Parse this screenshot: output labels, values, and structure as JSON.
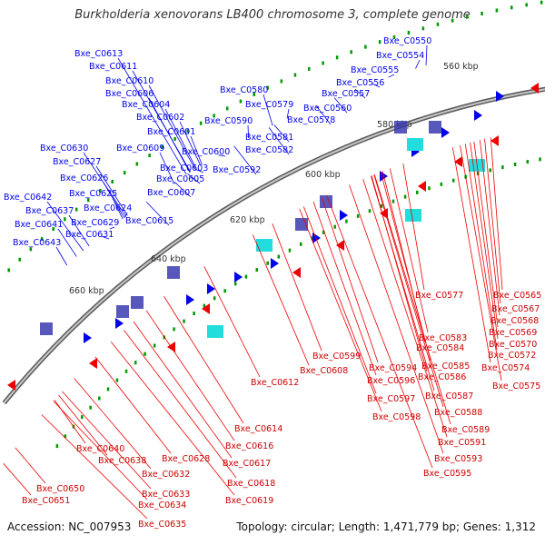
{
  "title": "Burkholderia xenovorans LB400 chromosome 3, complete genome",
  "footer": {
    "accession_label": "Accession: NC_007953",
    "stats_label": "Topology: circular; Length: 1,471,779 bp; Genes: 1,312"
  },
  "colors": {
    "forward_strand": "#0000ee",
    "reverse_strand": "#ee0000",
    "backbone": "#888888",
    "kbp_tick": "#009900"
  },
  "position_labels": [
    "560 kbp",
    "580 kbp",
    "600 kbp",
    "620 kbp",
    "640 kbp",
    "660 kbp"
  ],
  "forward_genes": [
    "Bxe_C0550",
    "Bxe_C0554",
    "Bxe_C0555",
    "Bxe_C0556",
    "Bxe_C0557",
    "Bxe_C0560",
    "Bxe_C0613",
    "Bxe_C0611",
    "Bxe_C0610",
    "Bxe_C0606",
    "Bxe_C0604",
    "Bxe_C0602",
    "Bxe_C0601",
    "Bxe_C0600",
    "Bxe_C0609",
    "Bxe_C0603",
    "Bxe_C0605",
    "Bxe_C0607",
    "Bxe_C0615",
    "Bxe_C0580",
    "Bxe_C0579",
    "Bxe_C0578",
    "Bxe_C0590",
    "Bxe_C0581",
    "Bxe_C0582",
    "Bxe_C0592",
    "Bxe_C0630",
    "Bxe_C0627",
    "Bxe_C0626",
    "Bxe_C0625",
    "Bxe_C0624",
    "Bxe_C0629",
    "Bxe_C0631",
    "Bxe_C0642",
    "Bxe_C0637",
    "Bxe_C0641",
    "Bxe_C0643"
  ],
  "reverse_genes": [
    "Bxe_C0577",
    "Bxe_C0565",
    "Bxe_C0567",
    "Bxe_C0568",
    "Bxe_C0569",
    "Bxe_C0570",
    "Bxe_C0572",
    "Bxe_C0574",
    "Bxe_C0575",
    "Bxe_C0583",
    "Bxe_C0584",
    "Bxe_C0585",
    "Bxe_C0586",
    "Bxe_C0587",
    "Bxe_C0588",
    "Bxe_C0589",
    "Bxe_C0591",
    "Bxe_C0593",
    "Bxe_C0595",
    "Bxe_C0594",
    "Bxe_C0596",
    "Bxe_C0597",
    "Bxe_C0598",
    "Bxe_C0599",
    "Bxe_C0608",
    "Bxe_C0612",
    "Bxe_C0614",
    "Bxe_C0616",
    "Bxe_C0617",
    "Bxe_C0618",
    "Bxe_C0619",
    "Bxe_C0628",
    "Bxe_C0632",
    "Bxe_C0633",
    "Bxe_C0634",
    "Bxe_C0635",
    "Bxe_C0638",
    "Bxe_C0640",
    "Bxe_C0650",
    "Bxe_C0651"
  ]
}
